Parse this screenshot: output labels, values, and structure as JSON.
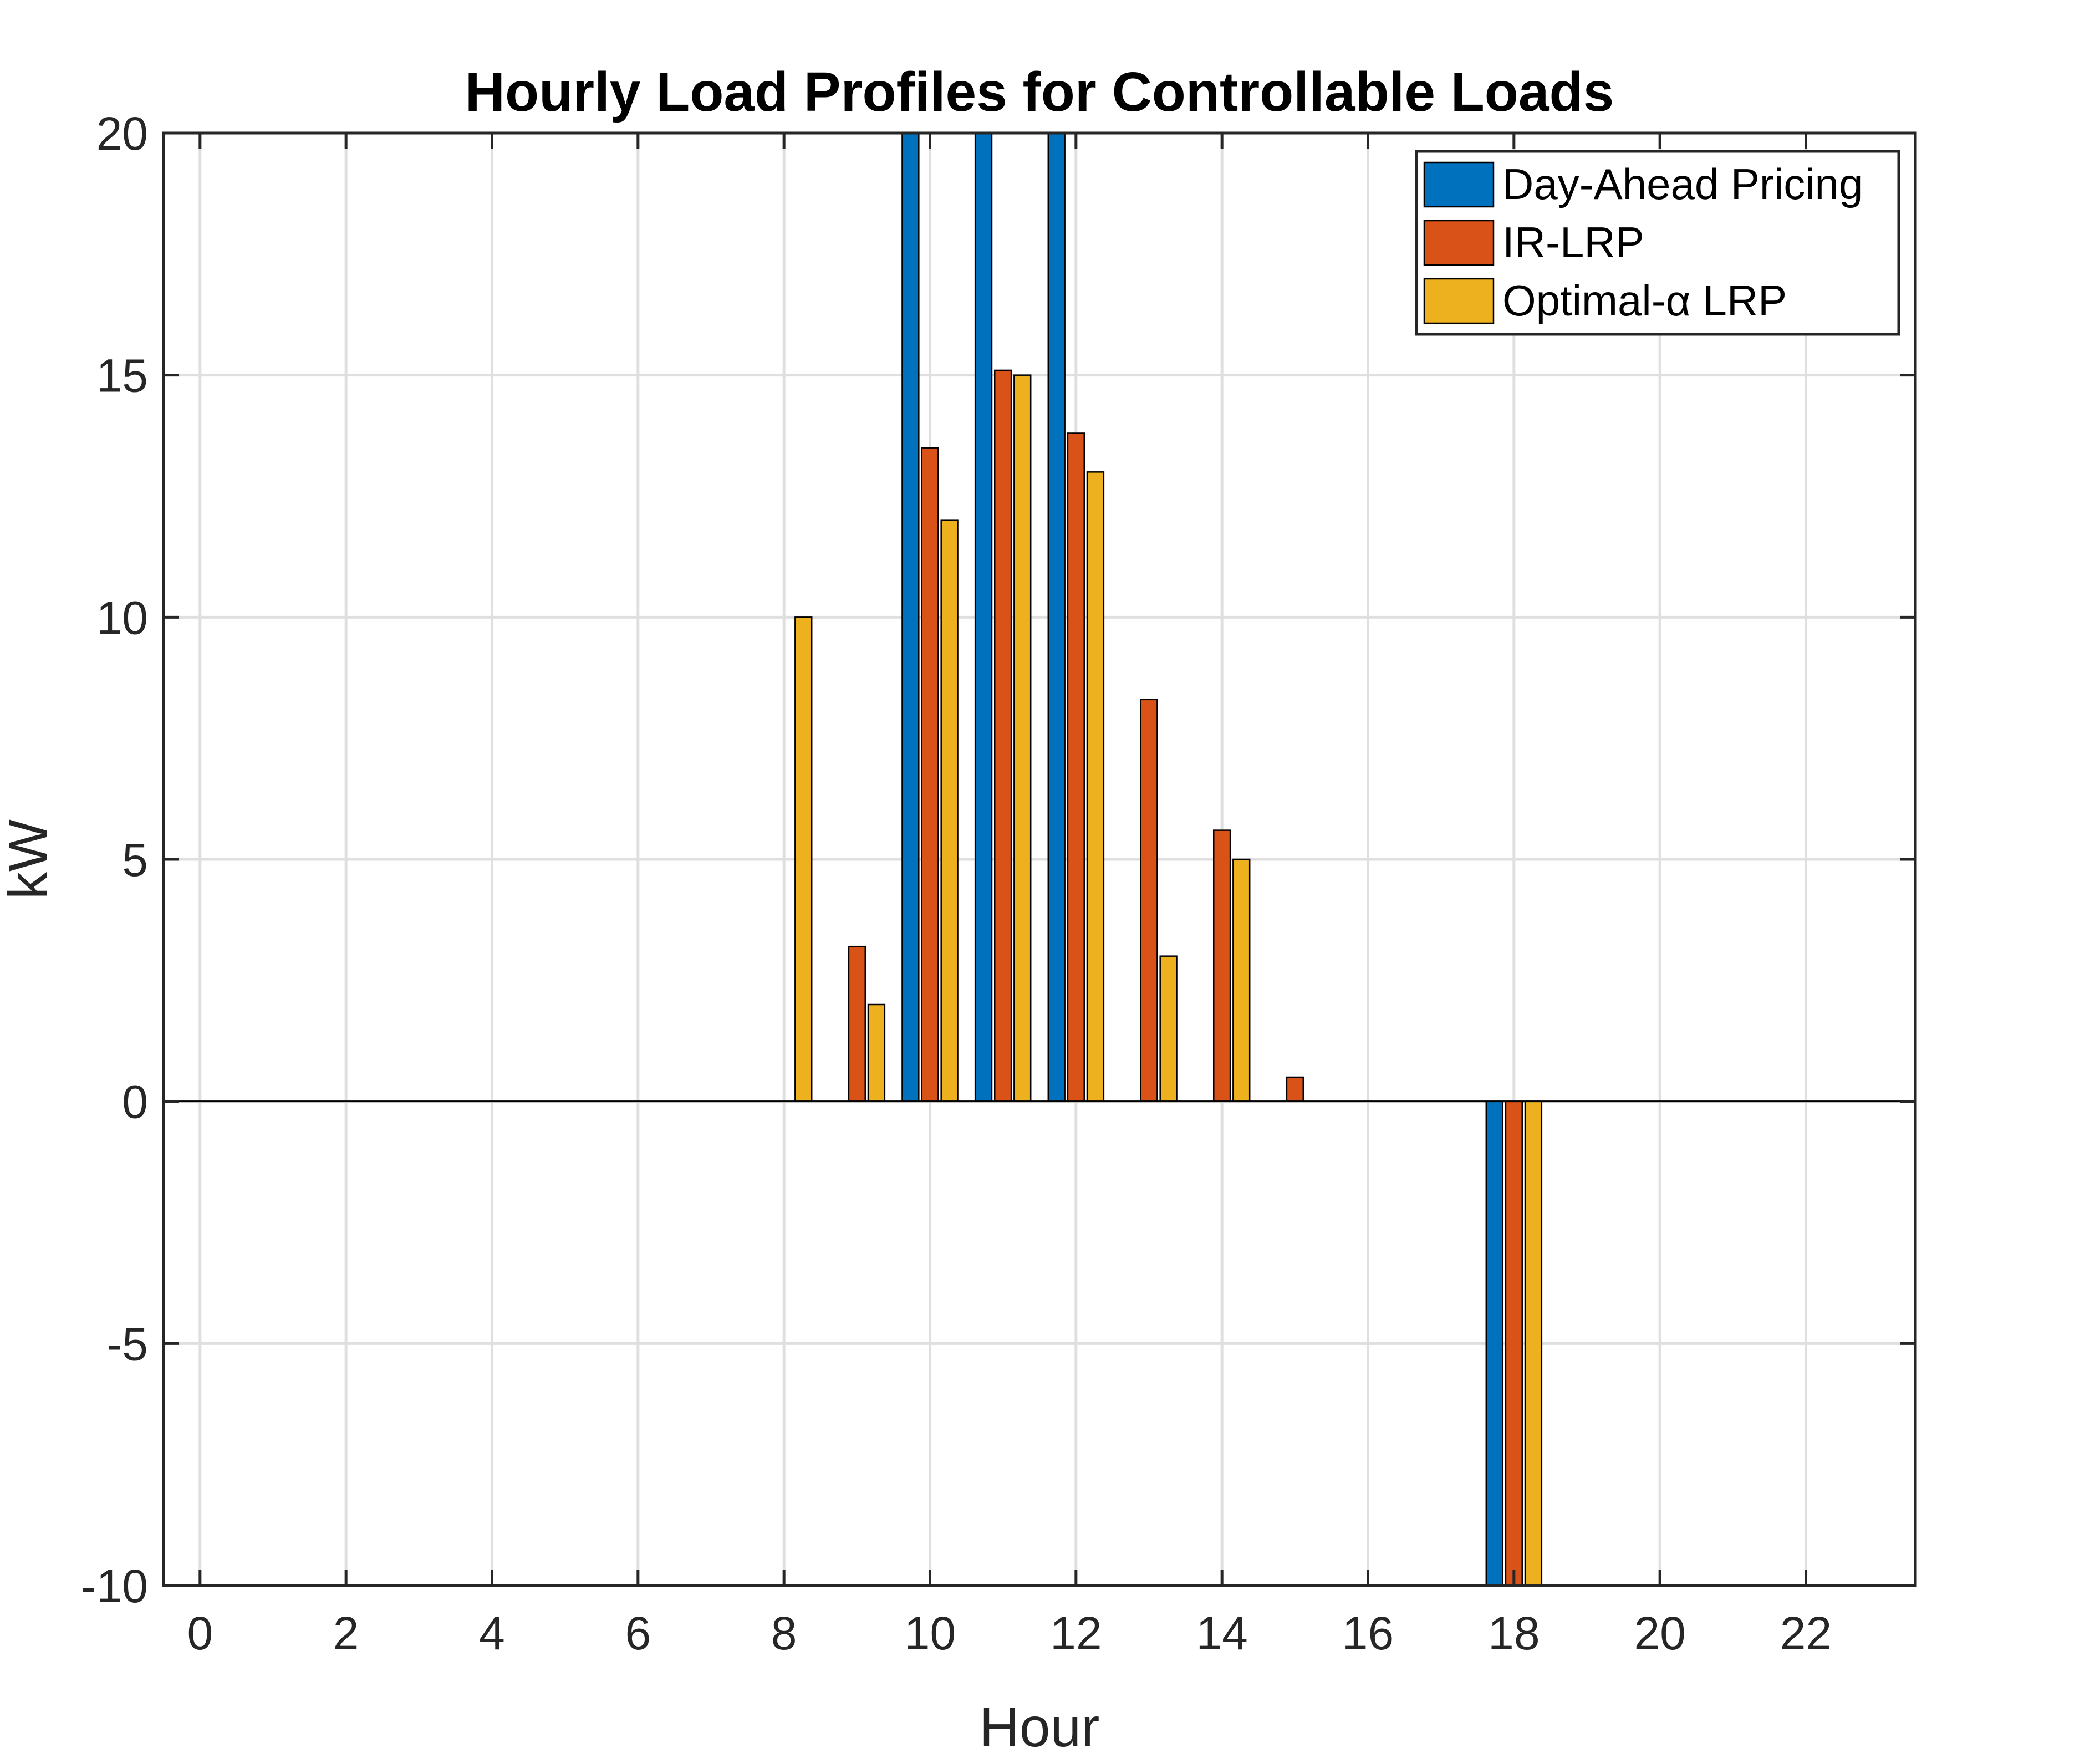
{
  "chart_data": {
    "type": "bar",
    "title": "Hourly Load Profiles for Controllable Loads",
    "xlabel": "Hour",
    "ylabel": "kW",
    "xlim": [
      -0.5,
      23.5
    ],
    "ylim": [
      -10,
      20
    ],
    "xticks": [
      "0",
      "2",
      "4",
      "6",
      "8",
      "10",
      "12",
      "14",
      "16",
      "18",
      "20",
      "22"
    ],
    "yticks": [
      "-10",
      "-5",
      "0",
      "5",
      "10",
      "15",
      "20"
    ],
    "grid": true,
    "legend_position": "top-right",
    "x": [
      0,
      1,
      2,
      3,
      4,
      5,
      6,
      7,
      8,
      9,
      10,
      11,
      12,
      13,
      14,
      15,
      16,
      17,
      18,
      19,
      20,
      21,
      22,
      23
    ],
    "series": [
      {
        "name": "Day-Ahead Pricing",
        "color": "#0072BD",
        "values": [
          0,
          0,
          0,
          0,
          0,
          0,
          0,
          0,
          0,
          0,
          20,
          20,
          20,
          0,
          0,
          0,
          0,
          0,
          -10,
          0,
          0,
          0,
          0,
          0
        ]
      },
      {
        "name": "IR-LRP",
        "color": "#D95319",
        "values": [
          0,
          0,
          0,
          0,
          0,
          0,
          0,
          0,
          0,
          3.2,
          13.5,
          15.1,
          13.8,
          8.3,
          5.6,
          0.5,
          0,
          0,
          -10,
          0,
          0,
          0,
          0,
          0
        ]
      },
      {
        "name": "Optimal-α LRP",
        "color": "#EDB120",
        "values": [
          0,
          0,
          0,
          0,
          0,
          0,
          0,
          0,
          10,
          2,
          12,
          15,
          13,
          3,
          5,
          0,
          0,
          0,
          -10,
          0,
          0,
          0,
          0,
          0
        ]
      }
    ]
  }
}
